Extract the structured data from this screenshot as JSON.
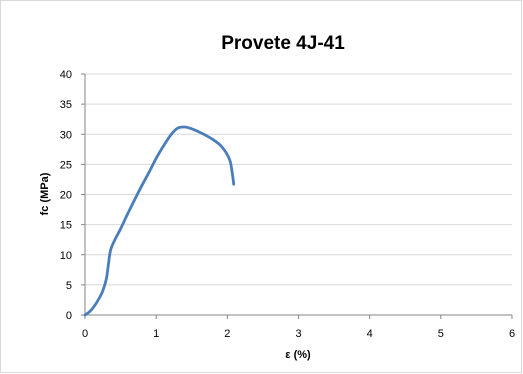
{
  "chart_data": {
    "type": "line",
    "title": "Provete 4J-41",
    "xlabel": "ε (%)",
    "ylabel": "fc (MPa)",
    "xlim": [
      0,
      6
    ],
    "ylim": [
      0,
      40
    ],
    "xticks": [
      0,
      1,
      2,
      3,
      4,
      5,
      6
    ],
    "yticks": [
      0,
      5,
      10,
      15,
      20,
      25,
      30,
      35,
      40
    ],
    "grid": "horizontal",
    "legend": "none",
    "series_color": "#4a7ebb",
    "series": [
      {
        "values_xy": [
          [
            0,
            0
          ],
          [
            0.05,
            0.4
          ],
          [
            0.1,
            1
          ],
          [
            0.15,
            1.8
          ],
          [
            0.2,
            2.8
          ],
          [
            0.25,
            4
          ],
          [
            0.3,
            6
          ],
          [
            0.33,
            8.5
          ],
          [
            0.36,
            10.8
          ],
          [
            0.42,
            12.5
          ],
          [
            0.5,
            14.3
          ],
          [
            0.6,
            16.8
          ],
          [
            0.7,
            19.2
          ],
          [
            0.8,
            21.5
          ],
          [
            0.9,
            23.7
          ],
          [
            1.0,
            26.0
          ],
          [
            1.1,
            28.0
          ],
          [
            1.2,
            29.8
          ],
          [
            1.3,
            31.0
          ],
          [
            1.4,
            31.2
          ],
          [
            1.5,
            30.9
          ],
          [
            1.6,
            30.4
          ],
          [
            1.7,
            29.8
          ],
          [
            1.8,
            29.1
          ],
          [
            1.9,
            28.2
          ],
          [
            1.98,
            27.0
          ],
          [
            2.04,
            25.5
          ],
          [
            2.07,
            23.5
          ],
          [
            2.09,
            21.7
          ]
        ]
      }
    ]
  }
}
